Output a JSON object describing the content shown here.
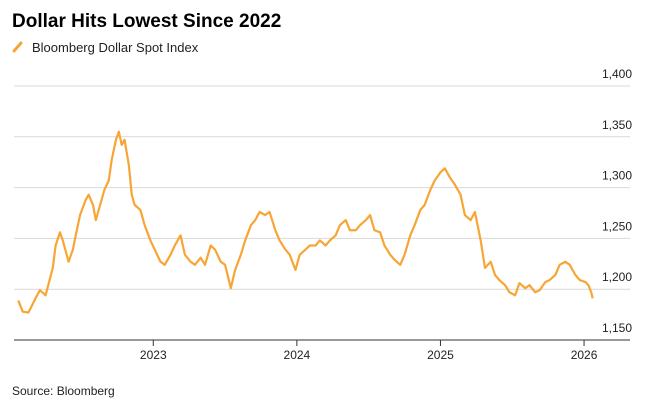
{
  "chart_data": {
    "type": "line",
    "title": "Dollar Hits Lowest Since 2022",
    "source": "Source: Bloomberg",
    "x": [
      2022.06,
      2022.09,
      2022.13,
      2022.18,
      2022.21,
      2022.25,
      2022.3,
      2022.32,
      2022.35,
      2022.37,
      2022.41,
      2022.44,
      2022.46,
      2022.49,
      2022.53,
      2022.55,
      2022.58,
      2022.6,
      2022.63,
      2022.66,
      2022.69,
      2022.71,
      2022.74,
      2022.76,
      2022.78,
      2022.8,
      2022.83,
      2022.85,
      2022.87,
      2022.91,
      2022.94,
      2022.98,
      2023.01,
      2023.05,
      2023.08,
      2023.12,
      2023.15,
      2023.19,
      2023.22,
      2023.26,
      2023.29,
      2023.33,
      2023.36,
      2023.4,
      2023.43,
      2023.47,
      2023.5,
      2023.54,
      2023.57,
      2023.61,
      2023.64,
      2023.68,
      2023.71,
      2023.74,
      2023.78,
      2023.81,
      2023.85,
      2023.88,
      2023.92,
      2023.95,
      2023.99,
      2024.02,
      2024.06,
      2024.09,
      2024.13,
      2024.16,
      2024.2,
      2024.23,
      2024.27,
      2024.3,
      2024.34,
      2024.37,
      2024.41,
      2024.44,
      2024.48,
      2024.51,
      2024.54,
      2024.58,
      2024.61,
      2024.65,
      2024.68,
      2024.72,
      2024.75,
      2024.79,
      2024.82,
      2024.86,
      2024.89,
      2024.93,
      2024.96,
      2025.0,
      2025.03,
      2025.07,
      2025.1,
      2025.14,
      2025.17,
      2025.21,
      2025.24,
      2025.28,
      2025.31,
      2025.35,
      2025.38,
      2025.41,
      2025.45,
      2025.48,
      2025.52,
      2025.55,
      2025.59,
      2025.62,
      2025.66,
      2025.69,
      2025.73,
      2025.76,
      2025.8,
      2025.83,
      2025.87,
      2025.9,
      2025.94,
      2025.97,
      2026.01,
      2026.03,
      2026.05,
      2026.06
    ],
    "series": [
      {
        "name": "Bloomberg Dollar Spot Index",
        "color": "#f7a535",
        "values": [
          1189,
          1178,
          1177,
          1191,
          1199,
          1194,
          1221,
          1243,
          1256,
          1248,
          1227,
          1239,
          1253,
          1273,
          1288,
          1293,
          1283,
          1268,
          1283,
          1298,
          1307,
          1327,
          1347,
          1355,
          1342,
          1347,
          1322,
          1293,
          1283,
          1278,
          1263,
          1248,
          1239,
          1227,
          1224,
          1234,
          1243,
          1253,
          1234,
          1227,
          1224,
          1231,
          1224,
          1243,
          1239,
          1227,
          1224,
          1201,
          1219,
          1234,
          1248,
          1263,
          1268,
          1276,
          1273,
          1276,
          1258,
          1248,
          1239,
          1234,
          1219,
          1234,
          1239,
          1243,
          1243,
          1248,
          1243,
          1248,
          1253,
          1263,
          1268,
          1258,
          1258,
          1263,
          1268,
          1273,
          1258,
          1256,
          1243,
          1234,
          1229,
          1224,
          1234,
          1253,
          1263,
          1278,
          1283,
          1298,
          1307,
          1315,
          1319,
          1309,
          1303,
          1293,
          1273,
          1268,
          1276,
          1248,
          1221,
          1227,
          1214,
          1209,
          1204,
          1197,
          1194,
          1206,
          1201,
          1204,
          1197,
          1199,
          1207,
          1209,
          1214,
          1224,
          1227,
          1224,
          1214,
          1209,
          1207,
          1204,
          1197,
          1191
        ]
      }
    ],
    "xlim": [
      2022.03,
      2026.32
    ],
    "xticks": [
      2023,
      2024,
      2025,
      2026
    ],
    "ylim": [
      1150,
      1400
    ],
    "yticks": [
      {
        "value": 1150,
        "label": "1,150"
      },
      {
        "value": 1200,
        "label": "1,200"
      },
      {
        "value": 1250,
        "label": "1,250"
      },
      {
        "value": 1300,
        "label": "1,300"
      },
      {
        "value": 1350,
        "label": "1,350"
      },
      {
        "value": 1400,
        "label": "1,400"
      }
    ],
    "grid": true
  }
}
